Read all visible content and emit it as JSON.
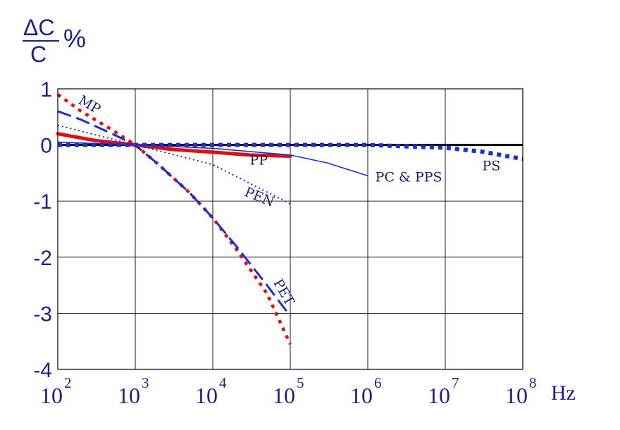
{
  "chart_data": {
    "type": "line",
    "y_unit_label": {
      "numerator": "ΔC",
      "denominator": "C",
      "suffix": "%"
    },
    "x_unit_label": "Hz",
    "xscale": "log",
    "xlim": [
      100,
      100000000
    ],
    "ylim": [
      -4,
      1
    ],
    "grid": true,
    "y_ticks": [
      {
        "value": 1,
        "label": "1"
      },
      {
        "value": 0,
        "label": "0"
      },
      {
        "value": -1,
        "label": "-1"
      },
      {
        "value": -2,
        "label": "-2"
      },
      {
        "value": -3,
        "label": "-3"
      },
      {
        "value": -4,
        "label": "-4"
      }
    ],
    "x_ticks": [
      {
        "value": 100,
        "base": "10",
        "exp": "2"
      },
      {
        "value": 1000,
        "base": "10",
        "exp": "3"
      },
      {
        "value": 10000,
        "base": "10",
        "exp": "4"
      },
      {
        "value": 100000,
        "base": "10",
        "exp": "5"
      },
      {
        "value": 1000000,
        "base": "10",
        "exp": "6"
      },
      {
        "value": 10000000,
        "base": "10",
        "exp": "7"
      },
      {
        "value": 100000000,
        "base": "10",
        "exp": "8"
      }
    ],
    "series": [
      {
        "key": "zero",
        "color": "#000000",
        "dash": "solid",
        "points": [
          [
            100,
            0
          ],
          [
            100000000,
            0
          ]
        ]
      },
      {
        "key": "mp",
        "name": "MP",
        "color": "#e01010",
        "dash": "dotted",
        "points": [
          [
            100,
            0.9
          ],
          [
            200,
            0.6
          ],
          [
            500,
            0.27
          ],
          [
            1000,
            0
          ],
          [
            2000,
            -0.35
          ],
          [
            5000,
            -0.85
          ],
          [
            10000,
            -1.3
          ],
          [
            20000,
            -1.85
          ],
          [
            50000,
            -2.65
          ],
          [
            100000,
            -3.55
          ]
        ]
      },
      {
        "key": "pet",
        "name": "PET",
        "color": "#1a2fd6",
        "dash": "longdash",
        "points": [
          [
            100,
            0.6
          ],
          [
            200,
            0.45
          ],
          [
            500,
            0.2
          ],
          [
            1000,
            0
          ],
          [
            2000,
            -0.35
          ],
          [
            5000,
            -0.85
          ],
          [
            10000,
            -1.3
          ],
          [
            20000,
            -1.8
          ],
          [
            50000,
            -2.5
          ],
          [
            100000,
            -3.05
          ]
        ]
      },
      {
        "key": "pen",
        "name": "PEN",
        "color": "#1a2fd6",
        "dash": "finedot",
        "points": [
          [
            100,
            0.35
          ],
          [
            1000,
            0
          ],
          [
            10000,
            -0.35
          ],
          [
            100000,
            -1.05
          ]
        ]
      },
      {
        "key": "pp",
        "name": "PP",
        "color": "#e01010",
        "dash": "solid-thick",
        "points": [
          [
            100,
            0.2
          ],
          [
            300,
            0.08
          ],
          [
            1000,
            0
          ],
          [
            3000,
            -0.08
          ],
          [
            10000,
            -0.13
          ],
          [
            30000,
            -0.18
          ],
          [
            100000,
            -0.2
          ]
        ]
      },
      {
        "key": "pc_pps",
        "name": "PC & PPS",
        "color": "#1a2fd6",
        "dash": "solid-thin",
        "points": [
          [
            100,
            0.05
          ],
          [
            1000,
            0
          ],
          [
            10000,
            -0.06
          ],
          [
            100000,
            -0.18
          ],
          [
            300000,
            -0.32
          ],
          [
            1000000,
            -0.55
          ]
        ]
      },
      {
        "key": "ps",
        "name": "PS",
        "color": "#1a2fd6",
        "dash": "bigdot",
        "points": [
          [
            100,
            0
          ],
          [
            1000000,
            0
          ],
          [
            10000000,
            -0.05
          ],
          [
            30000000,
            -0.12
          ],
          [
            100000000,
            -0.25
          ]
        ]
      }
    ],
    "annotations": [
      {
        "key": "mp",
        "text": "MP",
        "x": 180,
        "y": 0.75,
        "rotate": 30
      },
      {
        "key": "pp",
        "text": "PP",
        "x": 30000,
        "y": -0.35,
        "rotate": 0
      },
      {
        "key": "pc_pps",
        "text": "PC & PPS",
        "x": 1250000,
        "y": -0.65,
        "rotate": 0
      },
      {
        "key": "pen",
        "text": "PEN",
        "x": 25000,
        "y": -0.9,
        "rotate": 22
      },
      {
        "key": "pet",
        "text": "PET",
        "x": 60000,
        "y": -2.45,
        "rotate": 60
      },
      {
        "key": "ps",
        "text": "PS",
        "x": 30000000,
        "y": -0.45,
        "rotate": 0
      }
    ]
  }
}
